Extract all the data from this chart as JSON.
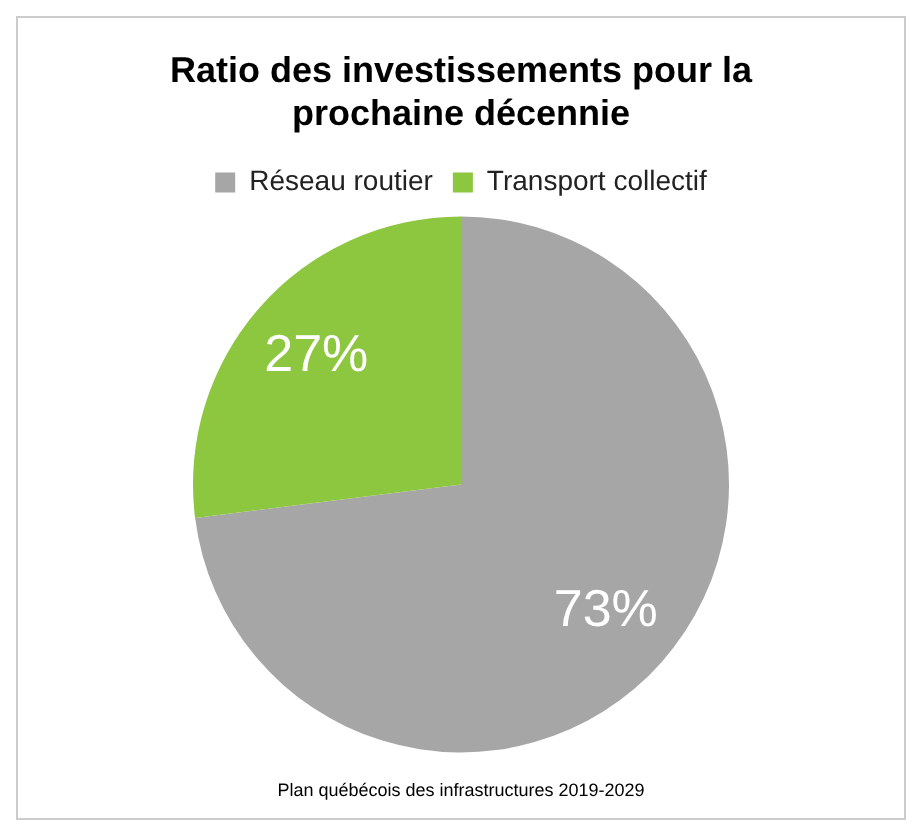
{
  "chart_data": {
    "type": "pie",
    "title": "Ratio des investissements pour la prochaine décennie",
    "categories": [
      "Réseau routier",
      "Transport collectif"
    ],
    "values": [
      73,
      27
    ],
    "colors": [
      "#a6a6a6",
      "#8dc63f"
    ],
    "value_labels": [
      "73%",
      "27%"
    ],
    "legend": "top",
    "annotations": [
      "Plan québécois des infrastructures 2019-2029"
    ]
  }
}
